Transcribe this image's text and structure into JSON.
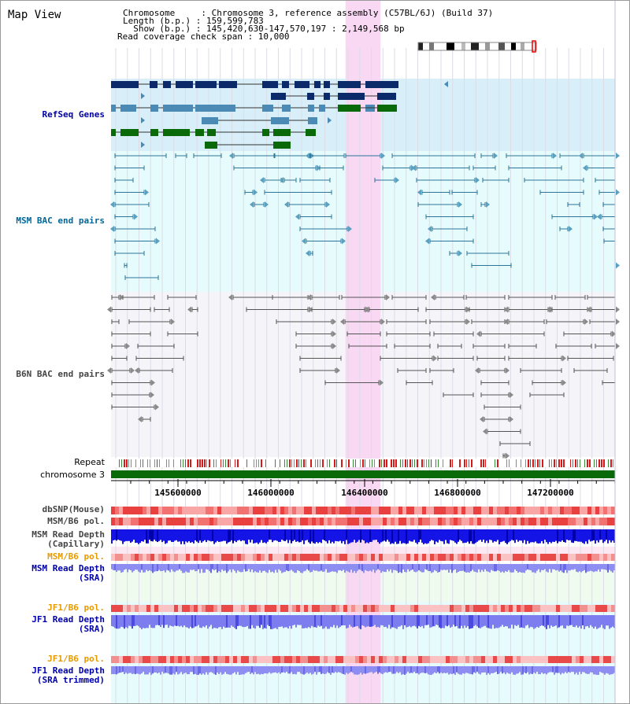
{
  "page": {
    "title": "Map View"
  },
  "header": {
    "chromosome_line": "Chromosome     : Chromosome 3, reference assembly (C57BL/6J) (Build 37)",
    "length_line": "Length (b.p.) : 159,599,783",
    "show_line": "  Show (b.p.) : 145,420,630-147,570,197 : 2,149,568 bp",
    "coverage_line": "Read coverage check span : 10,000"
  },
  "tracks": {
    "refseq": "RefSeq Genes",
    "msm_bac": "MSM BAC end pairs",
    "b6n_bac": "B6N BAC end pairs",
    "repeat": "Repeat",
    "chromosome": "chromosome 3",
    "dbsnp": "dbSNP(Mouse)",
    "msm_b6_pol_1": "MSM/B6 pol.",
    "msm_depth_cap_1": "MSM Read Depth",
    "msm_depth_cap_2": "(Capillary)",
    "msm_b6_pol_2": "MSM/B6 pol.",
    "msm_depth_sra_1": "MSM Read Depth",
    "msm_depth_sra_2": "(SRA)",
    "jf1_pol_1": "JF1/B6 pol.",
    "jf1_depth_sra_1": "JF1 Read Depth",
    "jf1_depth_sra_2": "(SRA)",
    "jf1_pol_2": "JF1/B6 pol.",
    "jf1_depth_trim_1": "JF1 Read Depth",
    "jf1_depth_trim_2": "(SRA trimmed)"
  },
  "axis": {
    "ticks": [
      "145600000",
      "146000000",
      "146400000",
      "146800000",
      "147200000"
    ]
  },
  "colors": {
    "refseq_label": "#0000aa",
    "msm_label": "#006699",
    "b6n_label": "#444444",
    "orange_label": "#e89a00",
    "blue_label": "#0000aa",
    "gray_label": "#444444",
    "highlight": "#f8d8f2",
    "refseq_bg": "#d8eff9",
    "msm_bg": "#e6fbfb",
    "b6n_bg": "#f4f4f9",
    "chromosome_bar": "#0a6a0a"
  },
  "highlight_region": {
    "start": 146420630,
    "end": 146570197
  }
}
